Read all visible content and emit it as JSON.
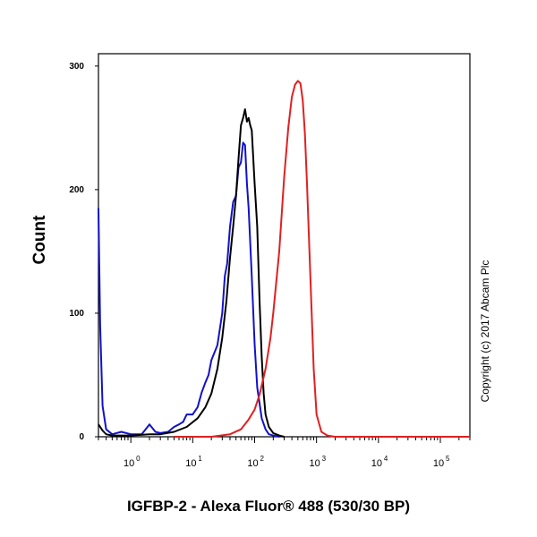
{
  "chart_data": {
    "type": "line",
    "xlabel": "IGFBP-2 - Alexa Fluor® 488 (530/30 BP)",
    "ylabel": "Count",
    "x_scale": "log",
    "xlim": [
      0.3,
      300000
    ],
    "ylim": [
      0,
      310
    ],
    "yticks": [
      "0",
      "100",
      "200",
      "300"
    ],
    "xtick_bases": [
      "10",
      "10",
      "10",
      "10",
      "10",
      "10"
    ],
    "xtick_exps": [
      "0",
      "1",
      "2",
      "3",
      "4",
      "5"
    ],
    "grid": false,
    "series": [
      {
        "color": "#1111cc",
        "x": [
          0.3,
          0.32,
          0.35,
          0.4,
          0.5,
          0.7,
          1.0,
          1.5,
          2,
          2.5,
          3,
          4,
          5,
          6,
          7,
          8,
          10,
          12,
          14,
          16,
          18,
          20,
          25,
          30,
          33,
          36,
          40,
          45,
          50,
          55,
          60,
          65,
          70,
          75,
          80,
          90,
          100,
          110,
          130,
          150,
          170,
          200,
          250
        ],
        "y": [
          185,
          90,
          25,
          6,
          2,
          4,
          2,
          2,
          10,
          4,
          3,
          4,
          8,
          10,
          12,
          18,
          18,
          24,
          36,
          44,
          50,
          62,
          74,
          100,
          130,
          140,
          170,
          190,
          195,
          218,
          222,
          238,
          236,
          205,
          185,
          130,
          75,
          40,
          15,
          6,
          2,
          1,
          0
        ]
      },
      {
        "color": "#000000",
        "x": [
          0.3,
          0.35,
          0.4,
          0.5,
          0.7,
          1,
          2,
          3,
          5,
          8,
          12,
          16,
          20,
          25,
          30,
          35,
          40,
          45,
          50,
          55,
          60,
          65,
          70,
          75,
          80,
          85,
          90,
          100,
          110,
          120,
          130,
          140,
          150,
          170,
          200,
          250,
          300
        ],
        "y": [
          10,
          5,
          2,
          1,
          1,
          1,
          2,
          2,
          4,
          8,
          15,
          24,
          35,
          55,
          80,
          110,
          145,
          170,
          195,
          225,
          252,
          258,
          265,
          255,
          258,
          252,
          248,
          205,
          170,
          110,
          65,
          35,
          18,
          8,
          3,
          1,
          0
        ]
      },
      {
        "color": "#e02020",
        "x": [
          5,
          10,
          20,
          40,
          60,
          80,
          100,
          120,
          150,
          180,
          200,
          250,
          300,
          350,
          400,
          450,
          500,
          550,
          600,
          650,
          700,
          750,
          800,
          900,
          1000,
          1200,
          1500,
          2000,
          5000,
          300000
        ],
        "y": [
          0,
          0,
          0,
          2,
          6,
          14,
          22,
          34,
          55,
          80,
          100,
          150,
          210,
          250,
          275,
          285,
          288,
          286,
          272,
          245,
          205,
          165,
          125,
          55,
          18,
          4,
          1,
          0,
          0,
          0
        ]
      }
    ]
  },
  "watermark": "Copyright (c) 2017 Abcam Plc"
}
